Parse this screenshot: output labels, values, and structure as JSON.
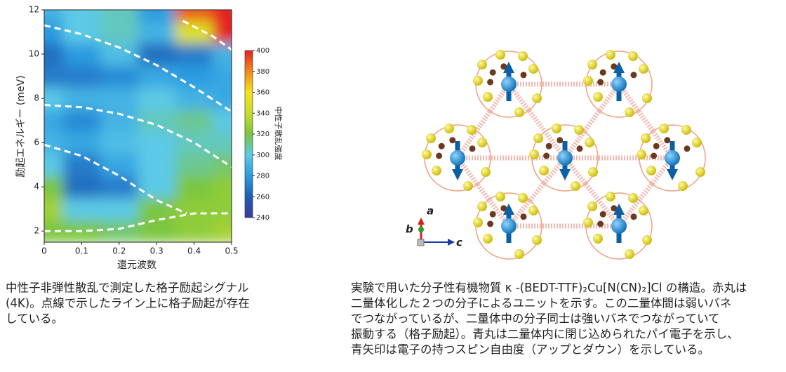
{
  "chart_data": {
    "type": "heatmap",
    "x_label": "還元波数",
    "y_label": "励起エネルギー (meV)",
    "colorbar_label": "中性子散乱強度",
    "x": [
      0,
      0.1,
      0.2,
      0.3,
      0.4,
      0.5
    ],
    "y": [
      2,
      3,
      4,
      5,
      6,
      7,
      8,
      9,
      10,
      11,
      12
    ],
    "z": [
      [
        320,
        320,
        315,
        320,
        325,
        330
      ],
      [
        330,
        300,
        300,
        320,
        325,
        325
      ],
      [
        320,
        265,
        270,
        300,
        320,
        325
      ],
      [
        300,
        270,
        285,
        300,
        310,
        315
      ],
      [
        290,
        285,
        295,
        300,
        305,
        305
      ],
      [
        285,
        275,
        290,
        305,
        310,
        300
      ],
      [
        300,
        290,
        290,
        300,
        290,
        285
      ],
      [
        270,
        270,
        275,
        285,
        280,
        285
      ],
      [
        265,
        280,
        295,
        265,
        270,
        290
      ],
      [
        280,
        300,
        305,
        290,
        350,
        400
      ],
      [
        290,
        300,
        305,
        280,
        390,
        400
      ]
    ],
    "xlim": [
      0,
      0.5
    ],
    "ylim": [
      1.5,
      12
    ],
    "xticks": [
      0,
      0.1,
      0.2,
      0.3,
      0.4,
      0.5
    ],
    "yticks": [
      2,
      4,
      6,
      8,
      10,
      12
    ],
    "zlim": [
      240,
      400
    ],
    "zticks": [
      240,
      260,
      280,
      300,
      320,
      340,
      360,
      380,
      400
    ],
    "series": [
      {
        "color": "#ffffff",
        "x": [
          0,
          0.1,
          0.2,
          0.3,
          0.4,
          0.5
        ],
        "values": [
          11.3,
          10.9,
          10.3,
          9.5,
          8.5,
          7.4
        ]
      },
      {
        "color": "#ffffff",
        "x": [
          0,
          0.1,
          0.2,
          0.3,
          0.4,
          0.5
        ],
        "values": [
          7.7,
          7.6,
          7.3,
          6.8,
          6.0,
          4.9
        ]
      },
      {
        "color": "#ffffff",
        "x": [
          0,
          0.1,
          0.2,
          0.3,
          0.38
        ],
        "values": [
          5.9,
          5.4,
          4.5,
          3.4,
          2.8
        ]
      },
      {
        "color": "#ffffff",
        "x": [
          0,
          0.1,
          0.2,
          0.3,
          0.4,
          0.5
        ],
        "values": [
          2.0,
          2.0,
          2.1,
          2.5,
          2.8,
          2.8
        ]
      },
      {
        "color": "#ffffff",
        "x": [
          0.37,
          0.45,
          0.5
        ],
        "values": [
          11.5,
          10.8,
          10.2
        ]
      }
    ]
  },
  "structure": {
    "axis_a": "a",
    "axis_b": "b",
    "axis_c": "c"
  },
  "captions": {
    "left": [
      "中性子非弾性散乱で測定した格子励起シグナル",
      "(4K)。点線で示したライン上に格子励起が存在",
      "している。"
    ],
    "right": [
      "実験で用いた分子性有機物質 κ -(BEDT-TTF)₂Cu[N(CN)₂]Cl の構造。赤丸は",
      "二量体化した２つの分子によるユニットを示す。この二量体間は弱いバネ",
      "でつながっているが、二量体中の分子同士は強いバネでつながっていて",
      "振動する（格子励起）。青丸は二量体内に閉じ込められたパイ電子を示し、",
      "青矢印は電子の持つスピン自由度（アップとダウン）を示している。"
    ]
  }
}
